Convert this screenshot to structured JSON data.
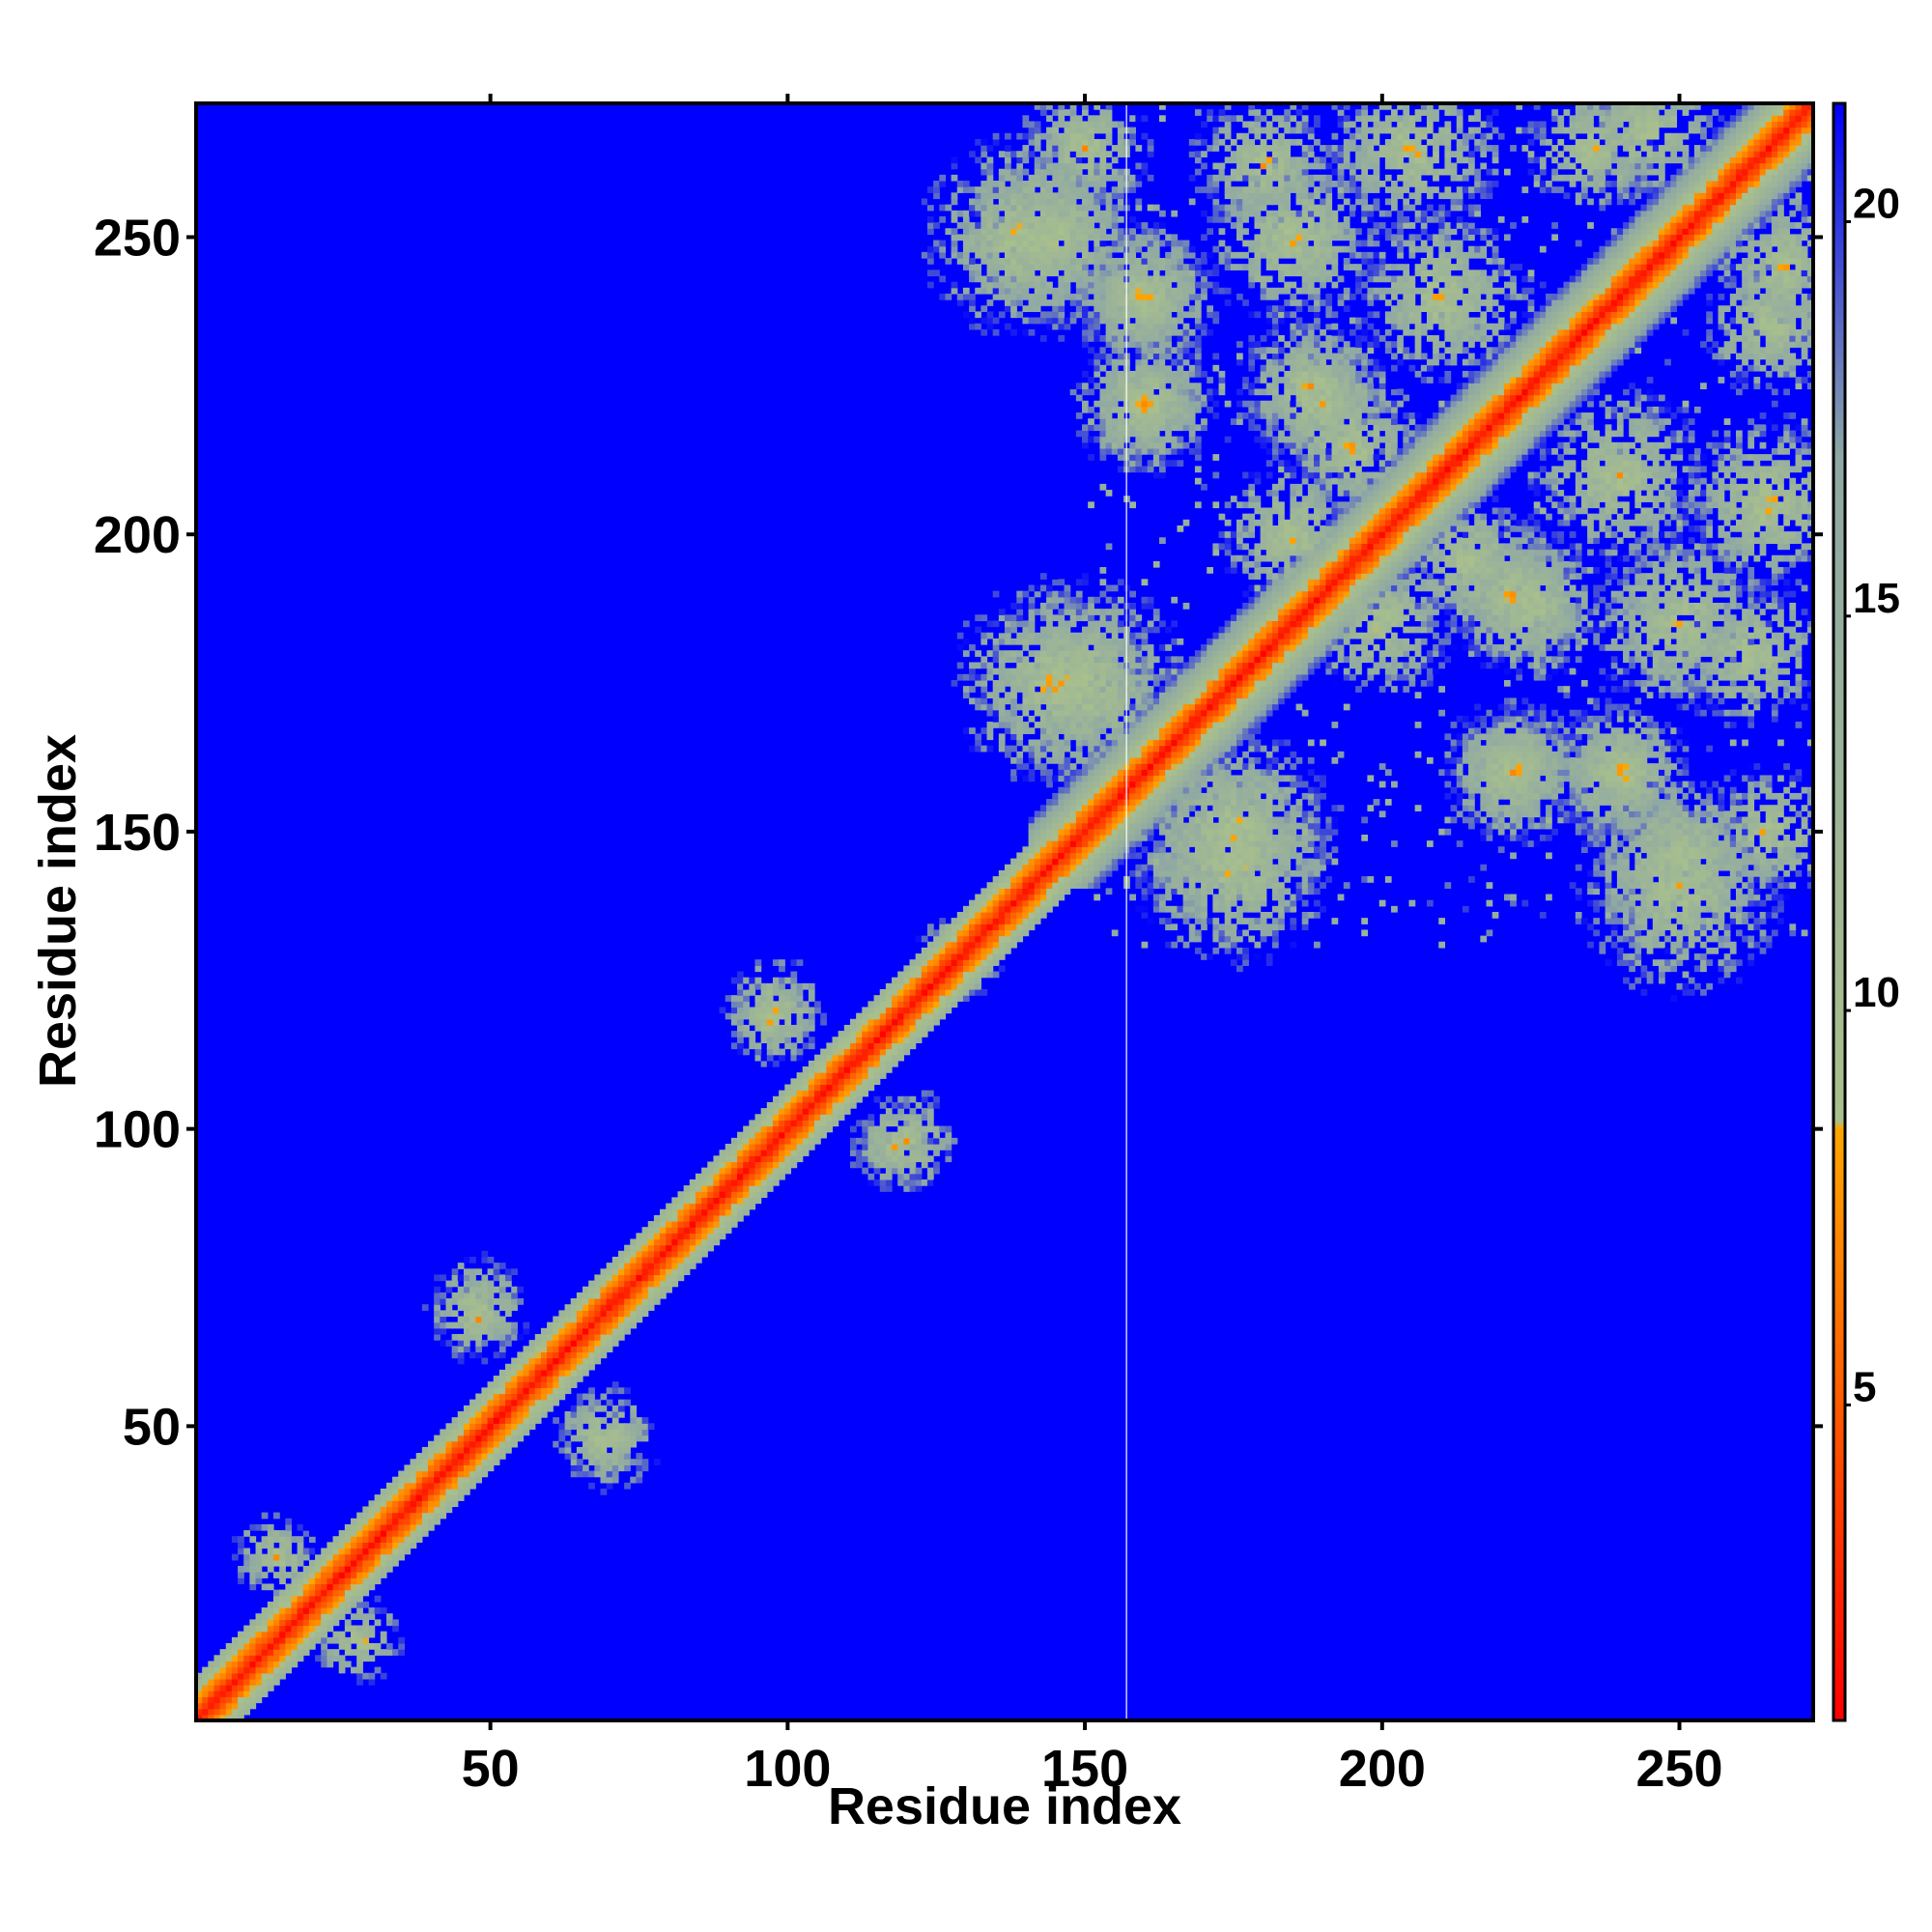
{
  "chart_data": {
    "type": "heatmap",
    "title": "",
    "xlabel": "Residue index",
    "ylabel": "Residue index",
    "xlim": [
      1,
      272
    ],
    "ylim": [
      1,
      272
    ],
    "x_ticks": [
      50,
      100,
      150,
      200,
      250
    ],
    "y_ticks": [
      50,
      100,
      150,
      200,
      250
    ],
    "x_tick_labels": [
      "50",
      "100",
      "150",
      "200",
      "250"
    ],
    "y_tick_labels": [
      "50",
      "100",
      "150",
      "200",
      "250"
    ],
    "colorbar": {
      "range": [
        1,
        21.5
      ],
      "ticks": [
        5,
        10,
        15,
        20
      ],
      "tick_labels": [
        "5",
        "10",
        "15",
        "20"
      ],
      "stops": [
        {
          "value": 1,
          "color": "#ff0000"
        },
        {
          "value": 5,
          "color": "#ff5a00"
        },
        {
          "value": 8.5,
          "color": "#ffa500"
        },
        {
          "value": 8.6,
          "color": "#a9c08c"
        },
        {
          "value": 17,
          "color": "#8fa8a4"
        },
        {
          "value": 21.5,
          "color": "#0000ff"
        }
      ]
    },
    "background_color": "#0000ff",
    "description_of_values": "Pairwise residue distance map; symmetric; diagonal near 1, off-diagonal contact regions 8-16, background above 21.5",
    "diagonal_band_half_width": 7,
    "vertical_marker_x": 157,
    "contact_blobs": [
      {
        "x": 28,
        "y": 14,
        "spread": 6
      },
      {
        "x": 48,
        "y": 70,
        "spread": 7
      },
      {
        "x": 68,
        "y": 48,
        "spread": 6
      },
      {
        "x": 98,
        "y": 120,
        "spread": 7
      },
      {
        "x": 118,
        "y": 97,
        "spread": 6
      },
      {
        "x": 128,
        "y": 130,
        "spread": 5
      },
      {
        "x": 140,
        "y": 250,
        "spread": 14
      },
      {
        "x": 150,
        "y": 175,
        "spread": 14
      },
      {
        "x": 160,
        "y": 240,
        "spread": 9
      },
      {
        "x": 160,
        "y": 222,
        "spread": 9
      },
      {
        "x": 175,
        "y": 145,
        "spread": 14
      },
      {
        "x": 185,
        "y": 250,
        "spread": 12
      },
      {
        "x": 190,
        "y": 222,
        "spread": 10
      },
      {
        "x": 200,
        "y": 185,
        "spread": 10
      },
      {
        "x": 205,
        "y": 265,
        "spread": 12
      },
      {
        "x": 215,
        "y": 195,
        "spread": 10
      },
      {
        "x": 222,
        "y": 160,
        "spread": 10
      },
      {
        "x": 225,
        "y": 188,
        "spread": 10
      },
      {
        "x": 240,
        "y": 160,
        "spread": 10
      },
      {
        "x": 245,
        "y": 268,
        "spread": 10
      },
      {
        "x": 250,
        "y": 145,
        "spread": 12
      },
      {
        "x": 262,
        "y": 180,
        "spread": 10
      },
      {
        "x": 265,
        "y": 235,
        "spread": 9
      },
      {
        "x": 265,
        "y": 150,
        "spread": 9
      },
      {
        "x": 240,
        "y": 210,
        "spread": 12
      }
    ]
  }
}
